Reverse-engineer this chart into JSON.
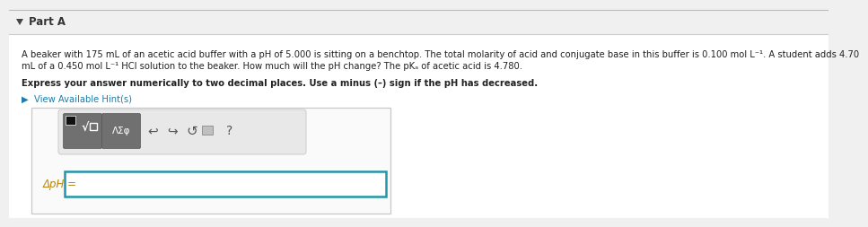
{
  "background_color": "#f0f0f0",
  "content_bg": "#ffffff",
  "header_text": "Part A",
  "header_color": "#333333",
  "header_bg": "#f0f0f0",
  "header_fontsize": 8.5,
  "body_text_line1": "A beaker with 175 mL of an acetic acid buffer with a pH of 5.000 is sitting on a benchtop. The total molarity of acid and conjugate base in this buffer is 0.100 mol L⁻¹. A student adds 4.70",
  "body_text_line2": "mL of a 0.450 mol L⁻¹ HCl solution to the beaker. How much will the pH change? The pKₐ of acetic acid is 4.780.",
  "body_fontsize": 7.2,
  "body_color": "#222222",
  "express_text": "Express your answer numerically to two decimal places. Use a minus (–) sign if the pH has decreased.",
  "express_fontsize": 7.2,
  "hint_text": "▶  View Available Hint(s)",
  "hint_color": "#1a7fad",
  "hint_fontsize": 7.2,
  "label_text": "ΔpH =",
  "label_color": "#b8860b",
  "label_fontsize": 8.5,
  "input_box_color": "#2196a8",
  "outer_box_color": "#c8c8c8",
  "toolbar_outer_bg": "#e8e8e8",
  "toolbar_outer_border": "#cccccc",
  "btn_bg": "#707070",
  "btn_border": "#555555",
  "header_line_color": "#cccccc",
  "icon_color": "#555555"
}
